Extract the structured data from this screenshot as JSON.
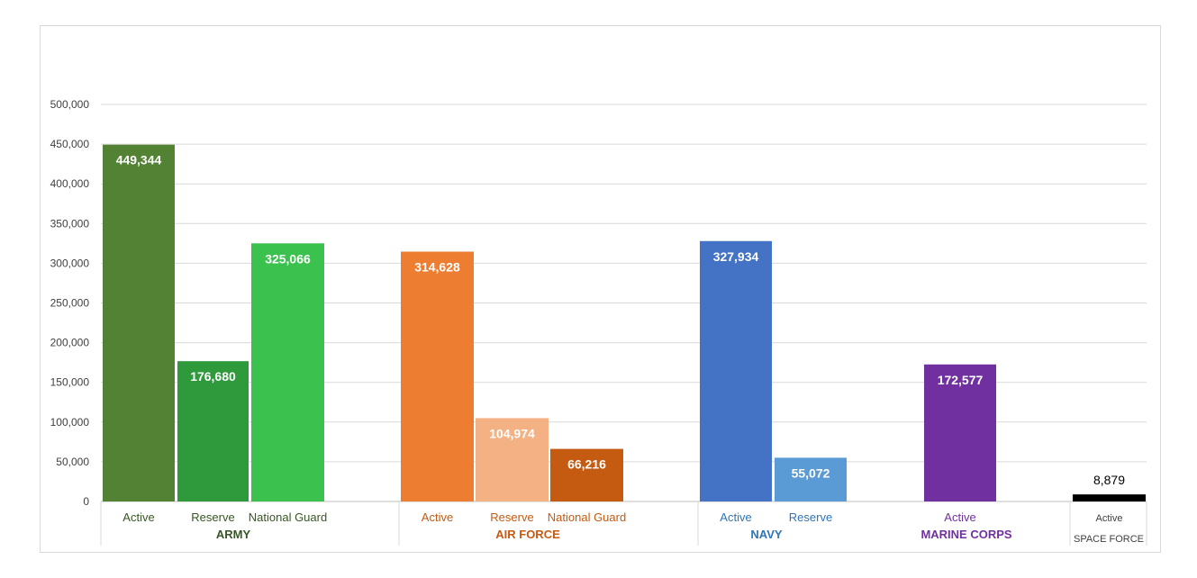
{
  "chart_data": {
    "type": "bar",
    "title": "",
    "xlabel": "",
    "ylabel": "",
    "ylim": [
      0,
      500000
    ],
    "yticks": [
      0,
      50000,
      100000,
      150000,
      200000,
      250000,
      300000,
      350000,
      400000,
      450000,
      500000
    ],
    "ytick_labels": [
      "0",
      "50,000",
      "100,000",
      "150,000",
      "200,000",
      "250,000",
      "300,000",
      "350,000",
      "400,000",
      "450,000",
      "500,000"
    ],
    "grid": true,
    "legend": "none",
    "groups": [
      {
        "name": "ARMY",
        "color": "#375623",
        "bars": [
          {
            "label": "Active",
            "value": 449344,
            "value_label": "449,344",
            "color": "#548235",
            "label_color": "#ffffff"
          },
          {
            "label": "Reserve",
            "value": 176680,
            "value_label": "176,680",
            "color": "#2e9a3c",
            "label_color": "#ffffff"
          },
          {
            "label": "National Guard",
            "value": 325066,
            "value_label": "325,066",
            "color": "#3bc24e",
            "label_color": "#ffffff"
          }
        ]
      },
      {
        "name": "AIR FORCE",
        "color": "#c55a11",
        "bars": [
          {
            "label": "Active",
            "value": 314628,
            "value_label": "314,628",
            "color": "#ed7d31",
            "label_color": "#ffffff"
          },
          {
            "label": "Reserve",
            "value": 104974,
            "value_label": "104,974",
            "color": "#f4b183",
            "label_color": "#ffffff"
          },
          {
            "label": "National Guard",
            "value": 66216,
            "value_label": "66,216",
            "color": "#c55a11",
            "label_color": "#ffffff"
          }
        ]
      },
      {
        "name": "NAVY",
        "color": "#2e75b6",
        "bars": [
          {
            "label": "Active",
            "value": 327934,
            "value_label": "327,934",
            "color": "#4472c4",
            "label_color": "#ffffff"
          },
          {
            "label": "Reserve",
            "value": 55072,
            "value_label": "55,072",
            "color": "#5b9bd5",
            "label_color": "#ffffff"
          }
        ]
      },
      {
        "name": "MARINE CORPS",
        "color": "#7030a0",
        "bars": [
          {
            "label": "Active",
            "value": 172577,
            "value_label": "172,577",
            "color": "#7030a0",
            "label_color": "#ffffff"
          }
        ]
      },
      {
        "name": "SPACE FORCE",
        "color": "#000000",
        "bars": [
          {
            "label": "Active",
            "value": 8879,
            "value_label": "8,879",
            "color": "#000000",
            "label_color": "#000000"
          }
        ]
      }
    ]
  }
}
